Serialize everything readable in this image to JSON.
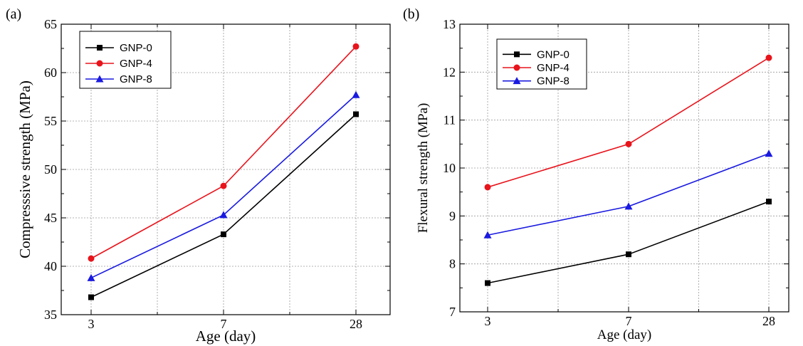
{
  "chart_data": [
    {
      "type": "line",
      "panel_label": "(a)",
      "categories": [
        "3",
        "7",
        "28"
      ],
      "xlabel": "Age (day)",
      "ylabel": "Compresssive strength (MPa)",
      "ylim": [
        35,
        65
      ],
      "yticks": [
        35,
        40,
        45,
        50,
        55,
        60,
        65
      ],
      "grid": true,
      "legend_position": "top-left",
      "series": [
        {
          "name": "GNP-0",
          "color": "#000000",
          "marker": "square",
          "values": [
            36.8,
            43.3,
            55.7
          ]
        },
        {
          "name": "GNP-4",
          "color": "#e8141c",
          "marker": "circle",
          "values": [
            40.8,
            48.3,
            62.7
          ]
        },
        {
          "name": "GNP-8",
          "color": "#1a1ae0",
          "marker": "triangle",
          "values": [
            38.8,
            45.3,
            57.7
          ]
        }
      ]
    },
    {
      "type": "line",
      "panel_label": "(b)",
      "categories": [
        "3",
        "7",
        "28"
      ],
      "xlabel": "Age (day)",
      "ylabel": "Flexural strength (MPa)",
      "ylim": [
        7,
        13
      ],
      "yticks": [
        7,
        8,
        9,
        10,
        11,
        12,
        13
      ],
      "grid": true,
      "legend_position": "top-left",
      "series": [
        {
          "name": "GNP-0",
          "color": "#000000",
          "marker": "square",
          "values": [
            7.6,
            8.2,
            9.3
          ]
        },
        {
          "name": "GNP-4",
          "color": "#e8141c",
          "marker": "circle",
          "values": [
            9.6,
            10.5,
            12.3
          ]
        },
        {
          "name": "GNP-8",
          "color": "#1a1ae0",
          "marker": "triangle",
          "values": [
            8.6,
            9.2,
            10.3
          ]
        }
      ]
    }
  ]
}
